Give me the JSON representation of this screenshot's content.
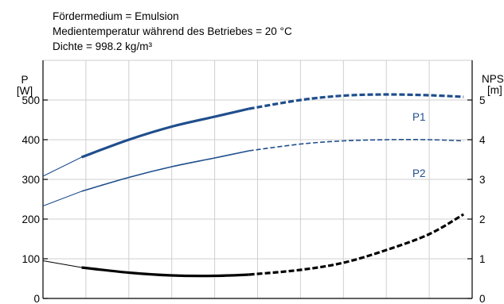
{
  "header": {
    "line1": "Fördermedium = Emulsion",
    "line2": "Medientemperatur während des Betriebes = 20 °C",
    "line3": "Dichte = 998.2 kg/m³"
  },
  "chart_data": {
    "type": "line",
    "left_axis": {
      "label_top": "P",
      "label_bottom": "[W]",
      "ylim": [
        0,
        600
      ],
      "ticks": [
        0,
        100,
        200,
        300,
        400,
        500
      ]
    },
    "right_axis": {
      "label_top": "NPSH",
      "label_bottom": "[m]",
      "ylim": [
        0,
        6
      ],
      "ticks": [
        0,
        1,
        2,
        3,
        4,
        5
      ]
    },
    "x_gridlines": 9,
    "grid": true,
    "colors": {
      "power": "#1f4e8c",
      "npsh": "#000000"
    },
    "series": [
      {
        "name": "P1",
        "axis": "left",
        "color": "#1f4e8c",
        "segments": [
          {
            "style": "thin",
            "points": [
              [
                0,
                308
              ],
              [
                0.09,
                356
              ]
            ]
          },
          {
            "style": "bold",
            "points": [
              [
                0.09,
                356
              ],
              [
                0.2,
                400
              ],
              [
                0.3,
                433
              ],
              [
                0.4,
                458
              ],
              [
                0.48,
                478
              ]
            ]
          },
          {
            "style": "bold-dashed",
            "points": [
              [
                0.48,
                478
              ],
              [
                0.6,
                500
              ],
              [
                0.7,
                511
              ],
              [
                0.8,
                514
              ],
              [
                0.9,
                512
              ],
              [
                0.98,
                508
              ]
            ]
          }
        ]
      },
      {
        "name": "P2",
        "axis": "left",
        "color": "#1f4e8c",
        "segments": [
          {
            "style": "thin",
            "points": [
              [
                0,
                233
              ],
              [
                0.09,
                270
              ]
            ]
          },
          {
            "style": "medium",
            "points": [
              [
                0.09,
                270
              ],
              [
                0.2,
                305
              ],
              [
                0.3,
                332
              ],
              [
                0.4,
                354
              ],
              [
                0.48,
                372
              ]
            ]
          },
          {
            "style": "dashed",
            "points": [
              [
                0.48,
                372
              ],
              [
                0.6,
                389
              ],
              [
                0.7,
                397
              ],
              [
                0.8,
                400
              ],
              [
                0.9,
                400
              ],
              [
                0.98,
                397
              ]
            ]
          }
        ]
      },
      {
        "axis": "right",
        "color": "#000000",
        "segments": [
          {
            "style": "thin",
            "points": [
              [
                0,
                0.95
              ],
              [
                0.09,
                0.78
              ]
            ]
          },
          {
            "style": "bold",
            "points": [
              [
                0.09,
                0.78
              ],
              [
                0.2,
                0.65
              ],
              [
                0.3,
                0.58
              ],
              [
                0.4,
                0.57
              ],
              [
                0.48,
                0.6
              ]
            ]
          },
          {
            "style": "bold-dashed",
            "points": [
              [
                0.48,
                0.6
              ],
              [
                0.6,
                0.72
              ],
              [
                0.7,
                0.9
              ],
              [
                0.8,
                1.22
              ],
              [
                0.9,
                1.62
              ],
              [
                0.98,
                2.12
              ]
            ]
          }
        ]
      }
    ]
  }
}
